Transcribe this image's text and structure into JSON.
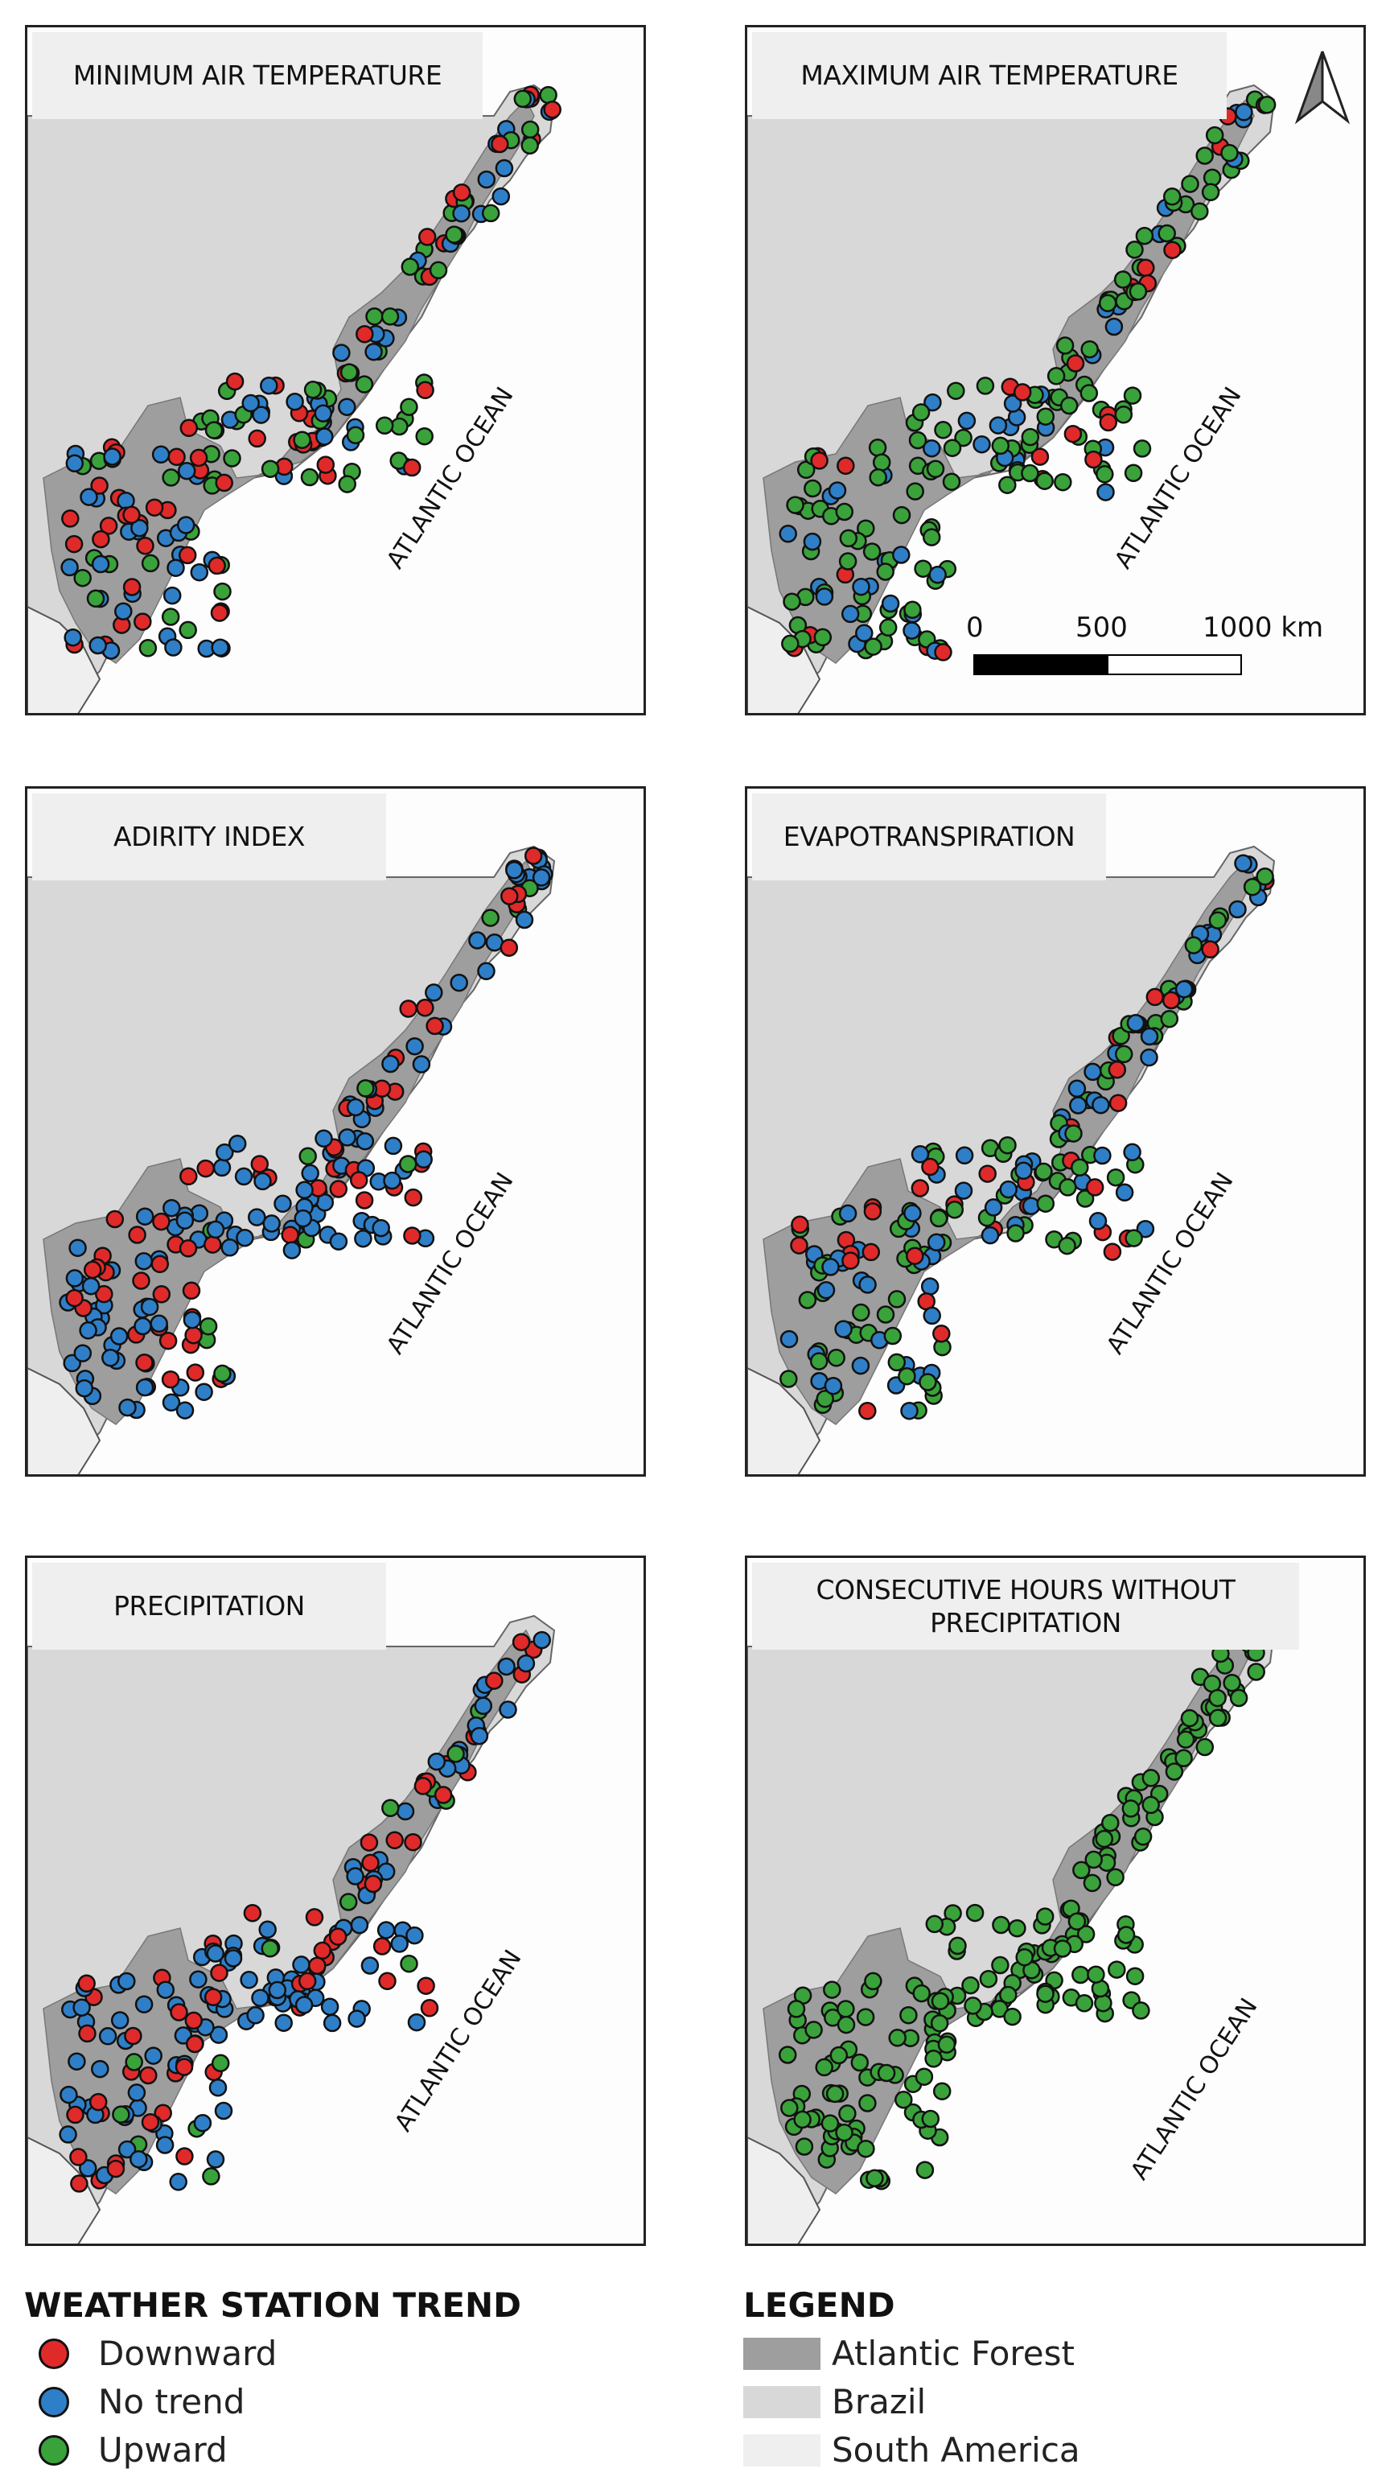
{
  "colors": {
    "downward": "#e02a2a",
    "no_trend": "#2f7fc8",
    "upward": "#3aa23a",
    "atlantic_forest": "#9e9e9e",
    "brazil": "#d8d8d8",
    "south_america": "#efefef"
  },
  "panels": [
    {
      "title": "MINIMUM AIR TEMPERATURE",
      "ocean_label": "ATLANTIC OCEAN",
      "dominant": "mixed"
    },
    {
      "title": "MAXIMUM AIR TEMPERATURE",
      "ocean_label": "ATLANTIC OCEAN",
      "dominant": "upward"
    },
    {
      "title": "ADIRITY INDEX",
      "ocean_label": "ATLANTIC OCEAN",
      "dominant": "no_trend"
    },
    {
      "title": "EVAPOTRANSPIRATION",
      "ocean_label": "ATLANTIC OCEAN",
      "dominant": "upward_mixed"
    },
    {
      "title": "PRECIPITATION",
      "ocean_label": "ATLANTIC OCEAN",
      "dominant": "down_blue"
    },
    {
      "title": "CONSECUTIVE HOURS WITHOUT PRECIPITATION",
      "ocean_label": "ATLANTIC OCEAN",
      "dominant": "all_upward"
    }
  ],
  "north_arrow_icon": "north-arrow-icon",
  "scale_bar": {
    "labels": [
      "0",
      "500",
      "1000 km"
    ]
  },
  "trend_legend": {
    "title": "WEATHER STATION TREND",
    "items": [
      {
        "label": "Downward"
      },
      {
        "label": "No trend"
      },
      {
        "label": "Upward"
      }
    ]
  },
  "map_legend": {
    "title": "LEGEND",
    "items": [
      {
        "label": "Atlantic Forest"
      },
      {
        "label": "Brazil"
      },
      {
        "label": "South America"
      }
    ]
  }
}
